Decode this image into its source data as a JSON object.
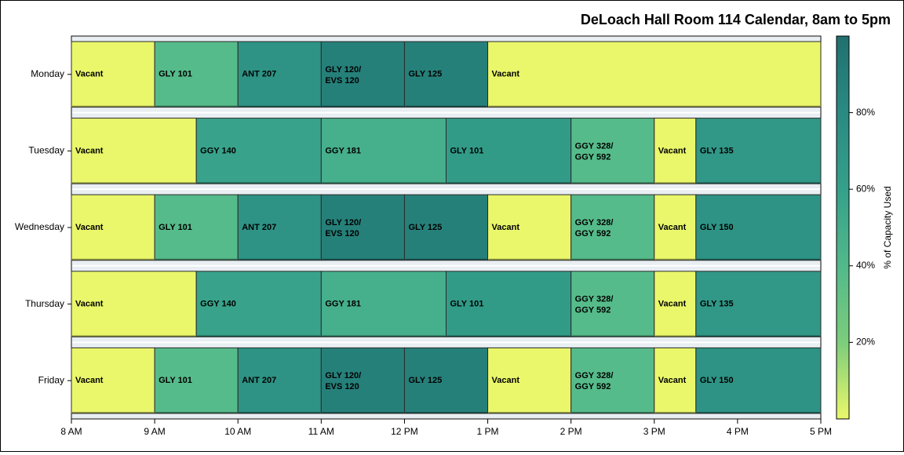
{
  "chart_data": {
    "type": "gantt-heatmap",
    "title": "DeLoach Hall Room 114 Calendar, 8am to 5pm",
    "x_ticks": [
      "8 AM",
      "9 AM",
      "10 AM",
      "11 AM",
      "12 PM",
      "1 PM",
      "2 PM",
      "3 PM",
      "4 PM",
      "5 PM"
    ],
    "x_range": [
      8,
      17
    ],
    "days": [
      "Monday",
      "Tuesday",
      "Wednesday",
      "Thursday",
      "Friday"
    ],
    "colorbar": {
      "label": "% of Capacity Used",
      "ticks": [
        "20%",
        "40%",
        "60%",
        "80%"
      ],
      "tick_values": [
        20,
        40,
        60,
        80
      ],
      "range": [
        0,
        100
      ],
      "colors": [
        "#eaf76b",
        "#7ccd7c",
        "#52b98b",
        "#35a08a",
        "#2a8a82",
        "#21706f"
      ]
    },
    "rows": [
      {
        "day": "Monday",
        "blocks": [
          {
            "label": "Vacant",
            "start": 8,
            "end": 9,
            "pct": 0
          },
          {
            "label": "GLY 101",
            "start": 9,
            "end": 10,
            "pct": 38
          },
          {
            "label": "ANT 207",
            "start": 10,
            "end": 11,
            "pct": 72
          },
          {
            "label": "GLY 120/\nEVS 120",
            "start": 11,
            "end": 12,
            "pct": 88
          },
          {
            "label": "GLY 125",
            "start": 12,
            "end": 13,
            "pct": 88
          },
          {
            "label": "Vacant",
            "start": 13,
            "end": 17,
            "pct": 0
          }
        ]
      },
      {
        "day": "Tuesday",
        "blocks": [
          {
            "label": "Vacant",
            "start": 8,
            "end": 9.5,
            "pct": 0
          },
          {
            "label": "GGY 140",
            "start": 9.5,
            "end": 11,
            "pct": 58
          },
          {
            "label": "GGY 181",
            "start": 11,
            "end": 12.5,
            "pct": 48
          },
          {
            "label": "GLY 101",
            "start": 12.5,
            "end": 14,
            "pct": 65
          },
          {
            "label": "GGY 328/\nGGY 592",
            "start": 14,
            "end": 15,
            "pct": 38
          },
          {
            "label": "Vacant",
            "start": 15,
            "end": 15.5,
            "pct": 0
          },
          {
            "label": "GLY 135",
            "start": 15.5,
            "end": 17,
            "pct": 68
          }
        ]
      },
      {
        "day": "Wednesday",
        "blocks": [
          {
            "label": "Vacant",
            "start": 8,
            "end": 9,
            "pct": 0
          },
          {
            "label": "GLY 101",
            "start": 9,
            "end": 10,
            "pct": 38
          },
          {
            "label": "ANT 207",
            "start": 10,
            "end": 11,
            "pct": 72
          },
          {
            "label": "GLY 120/\nEVS 120",
            "start": 11,
            "end": 12,
            "pct": 88
          },
          {
            "label": "GLY 125",
            "start": 12,
            "end": 13,
            "pct": 88
          },
          {
            "label": "Vacant",
            "start": 13,
            "end": 14,
            "pct": 0
          },
          {
            "label": "GGY 328/\nGGY 592",
            "start": 14,
            "end": 15,
            "pct": 38
          },
          {
            "label": "Vacant",
            "start": 15,
            "end": 15.5,
            "pct": 0
          },
          {
            "label": "GLY 150",
            "start": 15.5,
            "end": 17,
            "pct": 72
          }
        ]
      },
      {
        "day": "Thursday",
        "blocks": [
          {
            "label": "Vacant",
            "start": 8,
            "end": 9.5,
            "pct": 0
          },
          {
            "label": "GGY 140",
            "start": 9.5,
            "end": 11,
            "pct": 58
          },
          {
            "label": "GGY 181",
            "start": 11,
            "end": 12.5,
            "pct": 48
          },
          {
            "label": "GLY 101",
            "start": 12.5,
            "end": 14,
            "pct": 65
          },
          {
            "label": "GGY 328/\nGGY 592",
            "start": 14,
            "end": 15,
            "pct": 38
          },
          {
            "label": "Vacant",
            "start": 15,
            "end": 15.5,
            "pct": 0
          },
          {
            "label": "GLY 135",
            "start": 15.5,
            "end": 17,
            "pct": 68
          }
        ]
      },
      {
        "day": "Friday",
        "blocks": [
          {
            "label": "Vacant",
            "start": 8,
            "end": 9,
            "pct": 0
          },
          {
            "label": "GLY 101",
            "start": 9,
            "end": 10,
            "pct": 38
          },
          {
            "label": "ANT 207",
            "start": 10,
            "end": 11,
            "pct": 72
          },
          {
            "label": "GLY 120/\nEVS 120",
            "start": 11,
            "end": 12,
            "pct": 88
          },
          {
            "label": "GLY 125",
            "start": 12,
            "end": 13,
            "pct": 88
          },
          {
            "label": "Vacant",
            "start": 13,
            "end": 14,
            "pct": 0
          },
          {
            "label": "GGY 328/\nGGY 592",
            "start": 14,
            "end": 15,
            "pct": 38
          },
          {
            "label": "Vacant",
            "start": 15,
            "end": 15.5,
            "pct": 0
          },
          {
            "label": "GLY 150",
            "start": 15.5,
            "end": 17,
            "pct": 72
          }
        ]
      }
    ]
  }
}
